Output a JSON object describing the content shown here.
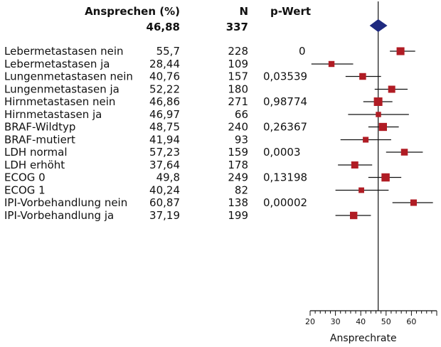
{
  "chart_data": {
    "type": "forest",
    "title": "",
    "columns": {
      "response": "Ansprechen (%)",
      "n": "N",
      "p": "p-Wert"
    },
    "overall": {
      "response": "46,88",
      "n": "337",
      "value": 46.88,
      "diamond_low": 43.5,
      "diamond_high": 50.5
    },
    "groups": [
      {
        "p": "0",
        "rows": [
          {
            "label": "Lebermetastasen nein",
            "response": "55,7",
            "n": "228",
            "value": 55.7,
            "ci": [
              51.5,
              61.5
            ]
          },
          {
            "label": "Lebermetastasen ja",
            "response": "28,44",
            "n": "109",
            "value": 28.44,
            "ci": [
              20.5,
              37
            ]
          }
        ]
      },
      {
        "p": "0,03539",
        "rows": [
          {
            "label": "Lungenmetastasen nein",
            "response": "40,76",
            "n": "157",
            "value": 40.76,
            "ci": [
              34,
              48
            ]
          },
          {
            "label": "Lungenmetastasen ja",
            "response": "52,22",
            "n": "180",
            "value": 52.22,
            "ci": [
              45.5,
              58.5
            ]
          }
        ]
      },
      {
        "p": "0,98774",
        "rows": [
          {
            "label": "Hirnmetastasen nein",
            "response": "46,86",
            "n": "271",
            "value": 46.86,
            "ci": [
              41,
              52.5
            ]
          },
          {
            "label": "Hirnmetastasen ja",
            "response": "46,97",
            "n": "66",
            "value": 46.97,
            "ci": [
              35,
              59
            ]
          }
        ]
      },
      {
        "p": "0,26367",
        "rows": [
          {
            "label": "BRAF-Wildtyp",
            "response": "48,75",
            "n": "240",
            "value": 48.75,
            "ci": [
              43,
              55
            ]
          },
          {
            "label": "BRAF-mutiert",
            "response": "41,94",
            "n": "93",
            "value": 41.94,
            "ci": [
              32,
              52
            ]
          }
        ]
      },
      {
        "p": "0,0003",
        "rows": [
          {
            "label": "LDH normal",
            "response": "57,23",
            "n": "159",
            "value": 57.23,
            "ci": [
              50,
              64.5
            ]
          },
          {
            "label": "LDH erhöht",
            "response": "37,64",
            "n": "178",
            "value": 37.64,
            "ci": [
              31,
              44.5
            ]
          }
        ]
      },
      {
        "p": "0,13198",
        "rows": [
          {
            "label": "ECOG 0",
            "response": "49,8",
            "n": "249",
            "value": 49.8,
            "ci": [
              43,
              56
            ]
          },
          {
            "label": "ECOG 1",
            "response": "40,24",
            "n": "82",
            "value": 40.24,
            "ci": [
              30,
              51
            ]
          }
        ]
      },
      {
        "p": "0,00002",
        "rows": [
          {
            "label": "IPI-Vorbehandlung nein",
            "response": "60,87",
            "n": "138",
            "value": 60.87,
            "ci": [
              52.5,
              68.5
            ]
          },
          {
            "label": "IPI-Vorbehandlung ja",
            "response": "37,19",
            "n": "199",
            "value": 37.19,
            "ci": [
              30,
              44
            ]
          }
        ]
      }
    ],
    "x_axis": {
      "label": "Ansprechrate",
      "ticks": [
        20,
        30,
        40,
        50,
        60
      ],
      "xlim": [
        20,
        70
      ],
      "reference_line": 46.88
    },
    "colors": {
      "marker": "#b01c24",
      "diamond": "#1f2a80",
      "line": "#111111"
    }
  }
}
